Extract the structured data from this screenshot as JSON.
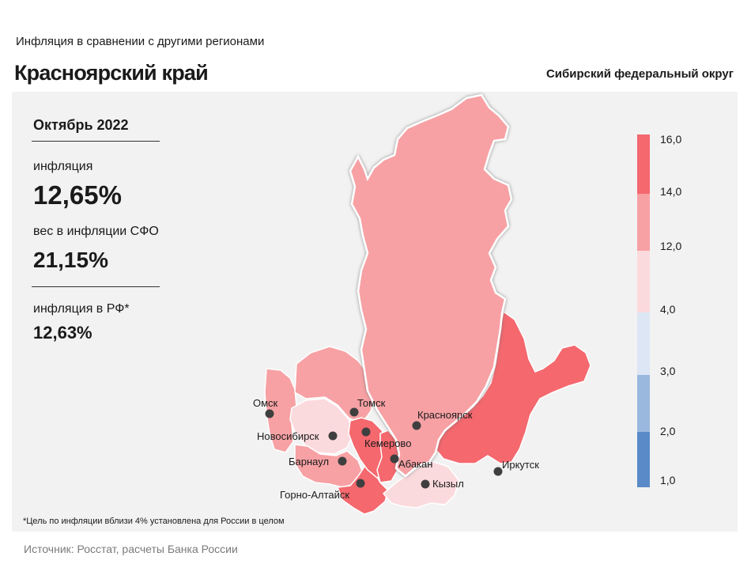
{
  "header": {
    "subtitle": "Инфляция  в сравнении  с другими  регионами",
    "title": "Красноярский край",
    "district": "Сибирский федеральный округ"
  },
  "info": {
    "period": "Октябрь 2022",
    "inflation_label": "инфляция",
    "inflation_value": "12,65%",
    "weight_label": "вес в инфляции  СФО",
    "weight_value": "21,15%",
    "rf_label": "инфляция  в РФ*",
    "rf_value": "12,63%"
  },
  "footnote": "*Цель по инфляции вблизи 4% установлена для России в целом",
  "source": "Источник: Росстат, расчеты Банка России",
  "colors": {
    "c_16": "#f4686e",
    "c_14": "#f7a1a4",
    "c_12": "#fbdadd",
    "c_4": "#dce6f4",
    "c_3": "#9ab8de",
    "c_2": "#5a8ac7",
    "highlight_border": "#ffffff"
  },
  "legend": {
    "ticks": [
      "16,0",
      "14,0",
      "12,0",
      "4,0",
      "3,0",
      "2,0",
      "1,0"
    ]
  },
  "cities": {
    "omsk": "Омск",
    "tomsk": "Томск",
    "krasnoyarsk": "Красноярск",
    "novosibirsk": "Новосибирск",
    "kemerovo": "Кемерово",
    "barnaul": "Барнаул",
    "abakan": "Абакан",
    "irkutsk": "Иркутск",
    "kyzyl": "Кызыл",
    "gorno_altaysk": "Горно-Алтайск"
  }
}
